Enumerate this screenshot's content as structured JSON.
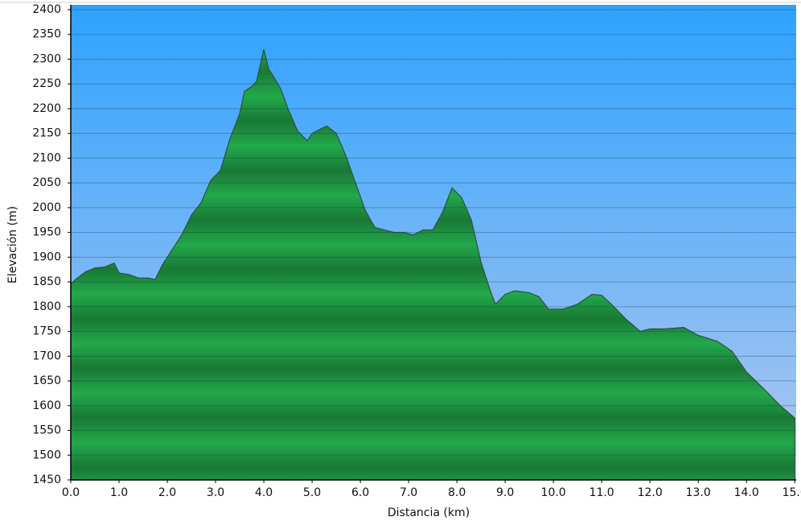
{
  "chart_data": {
    "type": "area",
    "x_label": "Distancia   (km)",
    "y_label": "Elevación (m)",
    "color": "#22a84a",
    "line_color": "#2f4f3f",
    "x": [
      0.0,
      0.1,
      0.3,
      0.5,
      0.7,
      0.9,
      1.0,
      1.2,
      1.4,
      1.6,
      1.75,
      1.9,
      2.1,
      2.3,
      2.5,
      2.7,
      2.9,
      3.1,
      3.3,
      3.5,
      3.6,
      3.75,
      3.85,
      4.0,
      4.1,
      4.2,
      4.35,
      4.5,
      4.7,
      4.9,
      5.0,
      5.3,
      5.5,
      5.7,
      5.9,
      6.1,
      6.3,
      6.5,
      6.7,
      6.9,
      7.1,
      7.3,
      7.5,
      7.7,
      7.9,
      8.1,
      8.3,
      8.5,
      8.7,
      8.8,
      9.0,
      9.2,
      9.5,
      9.7,
      9.9,
      10.2,
      10.5,
      10.8,
      11.0,
      11.2,
      11.5,
      11.8,
      12.0,
      12.3,
      12.7,
      13.0,
      13.4,
      13.7,
      14.0,
      14.4,
      14.7,
      15.0
    ],
    "values": [
      1845,
      1855,
      1870,
      1878,
      1880,
      1888,
      1868,
      1865,
      1858,
      1858,
      1855,
      1885,
      1915,
      1945,
      1985,
      2010,
      2055,
      2075,
      2140,
      2190,
      2235,
      2245,
      2255,
      2320,
      2280,
      2265,
      2240,
      2200,
      2155,
      2135,
      2150,
      2165,
      2150,
      2105,
      2050,
      1995,
      1960,
      1955,
      1950,
      1950,
      1945,
      1955,
      1955,
      1990,
      2040,
      2020,
      1975,
      1890,
      1830,
      1805,
      1825,
      1832,
      1828,
      1820,
      1795,
      1795,
      1805,
      1825,
      1823,
      1805,
      1775,
      1750,
      1755,
      1755,
      1758,
      1742,
      1730,
      1710,
      1668,
      1630,
      1600,
      1575
    ],
    "xlim": [
      0,
      15.03
    ],
    "ylim": [
      1450,
      2400
    ],
    "xticks": [
      {
        "value": 0,
        "label": "0.0"
      },
      {
        "value": 1,
        "label": "1.0"
      },
      {
        "value": 2,
        "label": "2.0"
      },
      {
        "value": 3,
        "label": "3.0"
      },
      {
        "value": 4,
        "label": "4.0"
      },
      {
        "value": 5,
        "label": "5.0"
      },
      {
        "value": 6,
        "label": "6.0"
      },
      {
        "value": 7,
        "label": "7.0"
      },
      {
        "value": 8,
        "label": "8.0"
      },
      {
        "value": 9,
        "label": "9.0"
      },
      {
        "value": 10,
        "label": "10.0"
      },
      {
        "value": 11,
        "label": "11.0"
      },
      {
        "value": 12,
        "label": "12.0"
      },
      {
        "value": 13,
        "label": "13.0"
      },
      {
        "value": 14,
        "label": "14.0"
      },
      {
        "value": 15,
        "label": "15.0"
      }
    ],
    "yticks": [
      1450,
      1500,
      1550,
      1600,
      1650,
      1700,
      1750,
      1800,
      1850,
      1900,
      1950,
      2000,
      2050,
      2100,
      2150,
      2200,
      2250,
      2300,
      2350,
      2400
    ],
    "grid": true
  }
}
